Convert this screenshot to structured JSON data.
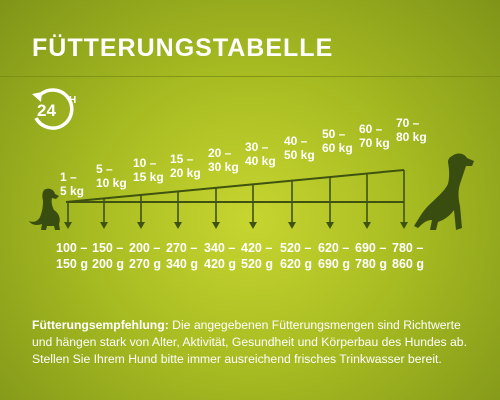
{
  "header": {
    "title": "FÜTTERUNGSTABELLE"
  },
  "badge": {
    "number": "24",
    "suffix": "H",
    "icon": "clock-24h-icon"
  },
  "weights": [
    [
      "1 –",
      "5 kg"
    ],
    [
      "5 –",
      "10 kg"
    ],
    [
      "10 –",
      "15 kg"
    ],
    [
      "15 –",
      "20 kg"
    ],
    [
      "20 –",
      "30 kg"
    ],
    [
      "30 –",
      "40 kg"
    ],
    [
      "40 –",
      "50 kg"
    ],
    [
      "50 –",
      "60 kg"
    ],
    [
      "60 –",
      "70 kg"
    ],
    [
      "70 –",
      "80 kg"
    ]
  ],
  "amounts": [
    [
      "100 –",
      "150 g"
    ],
    [
      "150 –",
      "200 g"
    ],
    [
      "200 –",
      "270 g"
    ],
    [
      "270 –",
      "340 g"
    ],
    [
      "340 –",
      "420 g"
    ],
    [
      "420 –",
      "520 g"
    ],
    [
      "520 –",
      "620 g"
    ],
    [
      "620 –",
      "690 g"
    ],
    [
      "690 –",
      "780 g"
    ],
    [
      "780 –",
      "860 g"
    ]
  ],
  "note": {
    "label": "Fütterungsempfehlung:",
    "text": " Die angegebenen Fütterungsmengen sind Richtwerte und hängen stark von Alter, Aktivität, Gesundheit und Körperbau des Hundes ab. Stellen Sie Ihrem Hund bitte immer ausreichend frisches Trinkwasser bereit."
  },
  "colors": {
    "background": "#b3c527",
    "text": "#ffffff",
    "lines": "#3f5210"
  },
  "icons": [
    "small-dog-icon",
    "large-dog-icon"
  ]
}
